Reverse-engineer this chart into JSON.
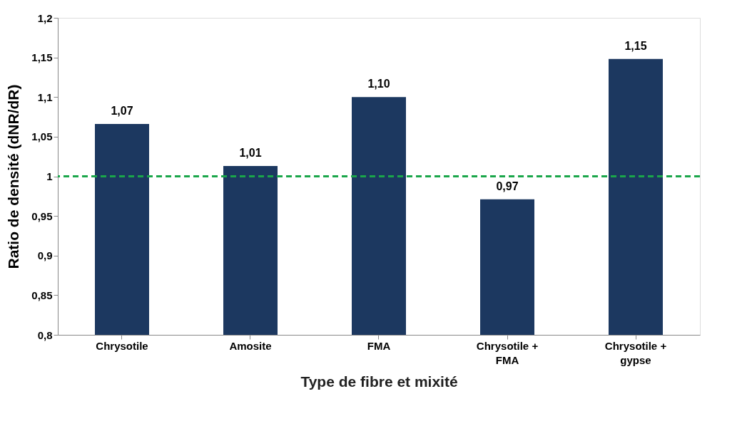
{
  "chart_data": {
    "type": "bar",
    "xlabel": "Type de fibre et mixité",
    "ylabel": "Ratio de densité (dNR/dR)",
    "categories": [
      "Chrysotile",
      "Amosite",
      "FMA",
      "Chrysotile + FMA",
      "Chrysotile + gypse"
    ],
    "values": [
      1.066,
      1.013,
      1.1,
      0.971,
      1.148
    ],
    "value_labels": [
      "1,07",
      "1,01",
      "1,10",
      "0,97",
      "1,15"
    ],
    "color": "#1c3860",
    "ylim": [
      0.8,
      1.2
    ],
    "yticks": [
      {
        "value": 0.8,
        "label": "0,8"
      },
      {
        "value": 0.85,
        "label": "0,85"
      },
      {
        "value": 0.9,
        "label": "0,9"
      },
      {
        "value": 0.95,
        "label": "0,95"
      },
      {
        "value": 1,
        "label": "1"
      },
      {
        "value": 1.05,
        "label": "1,05"
      },
      {
        "value": 1.1,
        "label": "1,1"
      },
      {
        "value": 1.15,
        "label": "1,15"
      },
      {
        "value": 1.2,
        "label": "1,2"
      }
    ],
    "ref_lines": [
      {
        "axis": "y",
        "value": 1,
        "color": "#1aa64a",
        "line_style": "dashed"
      }
    ],
    "grid": false
  }
}
